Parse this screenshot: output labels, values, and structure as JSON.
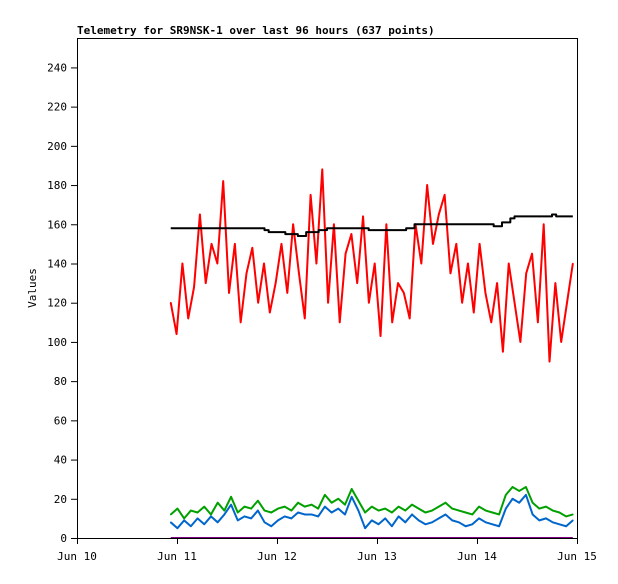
{
  "chart_data": {
    "type": "line",
    "title": "Telemetry for SR9NSK-1 over last 96 hours (637 points)",
    "xlabel": "",
    "ylabel": "Values",
    "ylim": [
      0,
      255
    ],
    "xlim_hours": [
      0,
      120
    ],
    "x_unit": "hours since Jun 10 00:00",
    "x_ticks": [
      {
        "h": 0,
        "label": "Jun 10"
      },
      {
        "h": 24,
        "label": "Jun 11"
      },
      {
        "h": 48,
        "label": "Jun 12"
      },
      {
        "h": 72,
        "label": "Jun 13"
      },
      {
        "h": 96,
        "label": "Jun 14"
      },
      {
        "h": 120,
        "label": "Jun 15"
      }
    ],
    "y_ticks": [
      0,
      20,
      40,
      60,
      80,
      100,
      120,
      140,
      160,
      180,
      200,
      220,
      240
    ],
    "grid": false,
    "series": [
      {
        "name": "red",
        "color": "#ff0000",
        "x_start": 22.5,
        "x_end": 119,
        "values": [
          120,
          104,
          140,
          112,
          128,
          165,
          130,
          150,
          140,
          182,
          125,
          150,
          110,
          135,
          148,
          120,
          140,
          115,
          130,
          150,
          125,
          160,
          135,
          112,
          175,
          140,
          188,
          120,
          160,
          110,
          145,
          155,
          130,
          164,
          120,
          140,
          103,
          160,
          110,
          130,
          125,
          112,
          160,
          140,
          180,
          150,
          165,
          175,
          135,
          150,
          120,
          140,
          115,
          150,
          125,
          110,
          130,
          95,
          140,
          120,
          100,
          135,
          145,
          110,
          160,
          90,
          130,
          100,
          120,
          140
        ]
      },
      {
        "name": "green",
        "color": "#00a000",
        "x_start": 22.5,
        "x_end": 119,
        "values": [
          12,
          15,
          10,
          14,
          13,
          16,
          12,
          18,
          14,
          21,
          13,
          16,
          15,
          19,
          14,
          13,
          15,
          16,
          14,
          18,
          16,
          17,
          15,
          22,
          18,
          20,
          17,
          25,
          19,
          13,
          16,
          14,
          15,
          13,
          16,
          14,
          17,
          15,
          13,
          14,
          16,
          18,
          15,
          14,
          13,
          12,
          16,
          14,
          13,
          12,
          22,
          26,
          24,
          26,
          18,
          15,
          16,
          14,
          13,
          11,
          12
        ]
      },
      {
        "name": "blue",
        "color": "#0066cc",
        "x_start": 22.5,
        "x_end": 119,
        "values": [
          8,
          5,
          9,
          6,
          10,
          7,
          11,
          8,
          12,
          17,
          9,
          11,
          10,
          14,
          8,
          6,
          9,
          11,
          10,
          13,
          12,
          12,
          11,
          16,
          13,
          15,
          12,
          21,
          14,
          5,
          9,
          7,
          10,
          6,
          11,
          8,
          12,
          9,
          7,
          8,
          10,
          12,
          9,
          8,
          6,
          7,
          10,
          8,
          7,
          6,
          15,
          20,
          18,
          22,
          12,
          9,
          10,
          8,
          7,
          6,
          9
        ]
      },
      {
        "name": "black",
        "color": "#000000",
        "step": true,
        "points": [
          [
            22.5,
            158
          ],
          [
            45,
            157
          ],
          [
            46,
            156
          ],
          [
            50,
            155
          ],
          [
            53,
            154
          ],
          [
            55,
            156
          ],
          [
            58,
            157
          ],
          [
            60,
            158
          ],
          [
            68,
            158
          ],
          [
            70,
            157
          ],
          [
            77,
            157
          ],
          [
            79,
            158
          ],
          [
            81,
            160
          ],
          [
            99,
            160
          ],
          [
            100,
            159
          ],
          [
            102,
            161
          ],
          [
            104,
            163
          ],
          [
            105,
            164
          ],
          [
            114,
            165
          ],
          [
            115,
            164
          ],
          [
            119,
            164
          ]
        ]
      },
      {
        "name": "purple",
        "color": "#800080",
        "points": [
          [
            22.5,
            0
          ],
          [
            119,
            0
          ]
        ]
      }
    ]
  }
}
